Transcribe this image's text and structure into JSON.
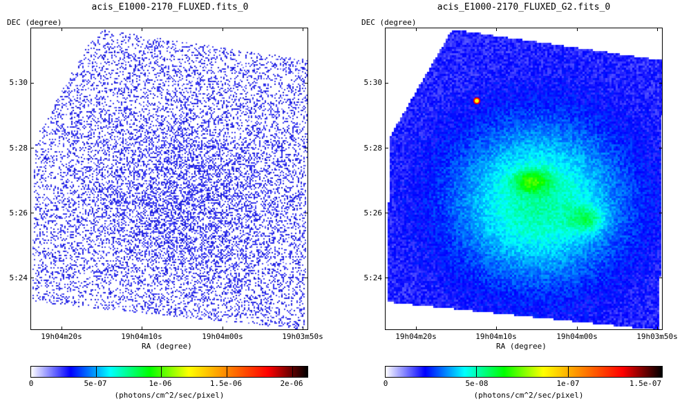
{
  "panels": [
    {
      "title": "acis_E1000-2170_FLUXED.fits_0",
      "ylabel": "DEC (degree)",
      "xlabel": "RA (degree)",
      "yticks": [
        "5:30",
        "5:28",
        "5:26",
        "5:24"
      ],
      "xticks": [
        "19h04m20s",
        "19h04m10s",
        "19h04m00s",
        "19h03m50s"
      ],
      "colorbar_ticks": [
        "0",
        "5e-07",
        "1e-06",
        "1.5e-06",
        "2e-06"
      ],
      "colorbar_unit": "(photons/cm^2/sec/pixel)",
      "image_style": "sparse photon-count map (blue speckle on white)"
    },
    {
      "title": "acis_E1000-2170_FLUXED_G2.fits_0",
      "ylabel": "DEC (degree)",
      "xlabel": "RA (degree)",
      "yticks": [
        "5:30",
        "5:28",
        "5:26",
        "5:24"
      ],
      "xticks": [
        "19h04m20s",
        "19h04m10s",
        "19h04m00s",
        "19h03m50s"
      ],
      "colorbar_ticks": [
        "0",
        "5e-08",
        "1e-07",
        "1.5e-07"
      ],
      "colorbar_unit": "(photons/cm^2/sec/pixel)",
      "image_style": "gaussian-smoothed flux map (blue to green/yellow)"
    }
  ],
  "colors": {
    "colormap_stops": [
      "#ffffff",
      "#0000ff",
      "#00ffff",
      "#00ff00",
      "#ffff00",
      "#ff8000",
      "#ff0000",
      "#000000"
    ],
    "frame": "#000000"
  }
}
